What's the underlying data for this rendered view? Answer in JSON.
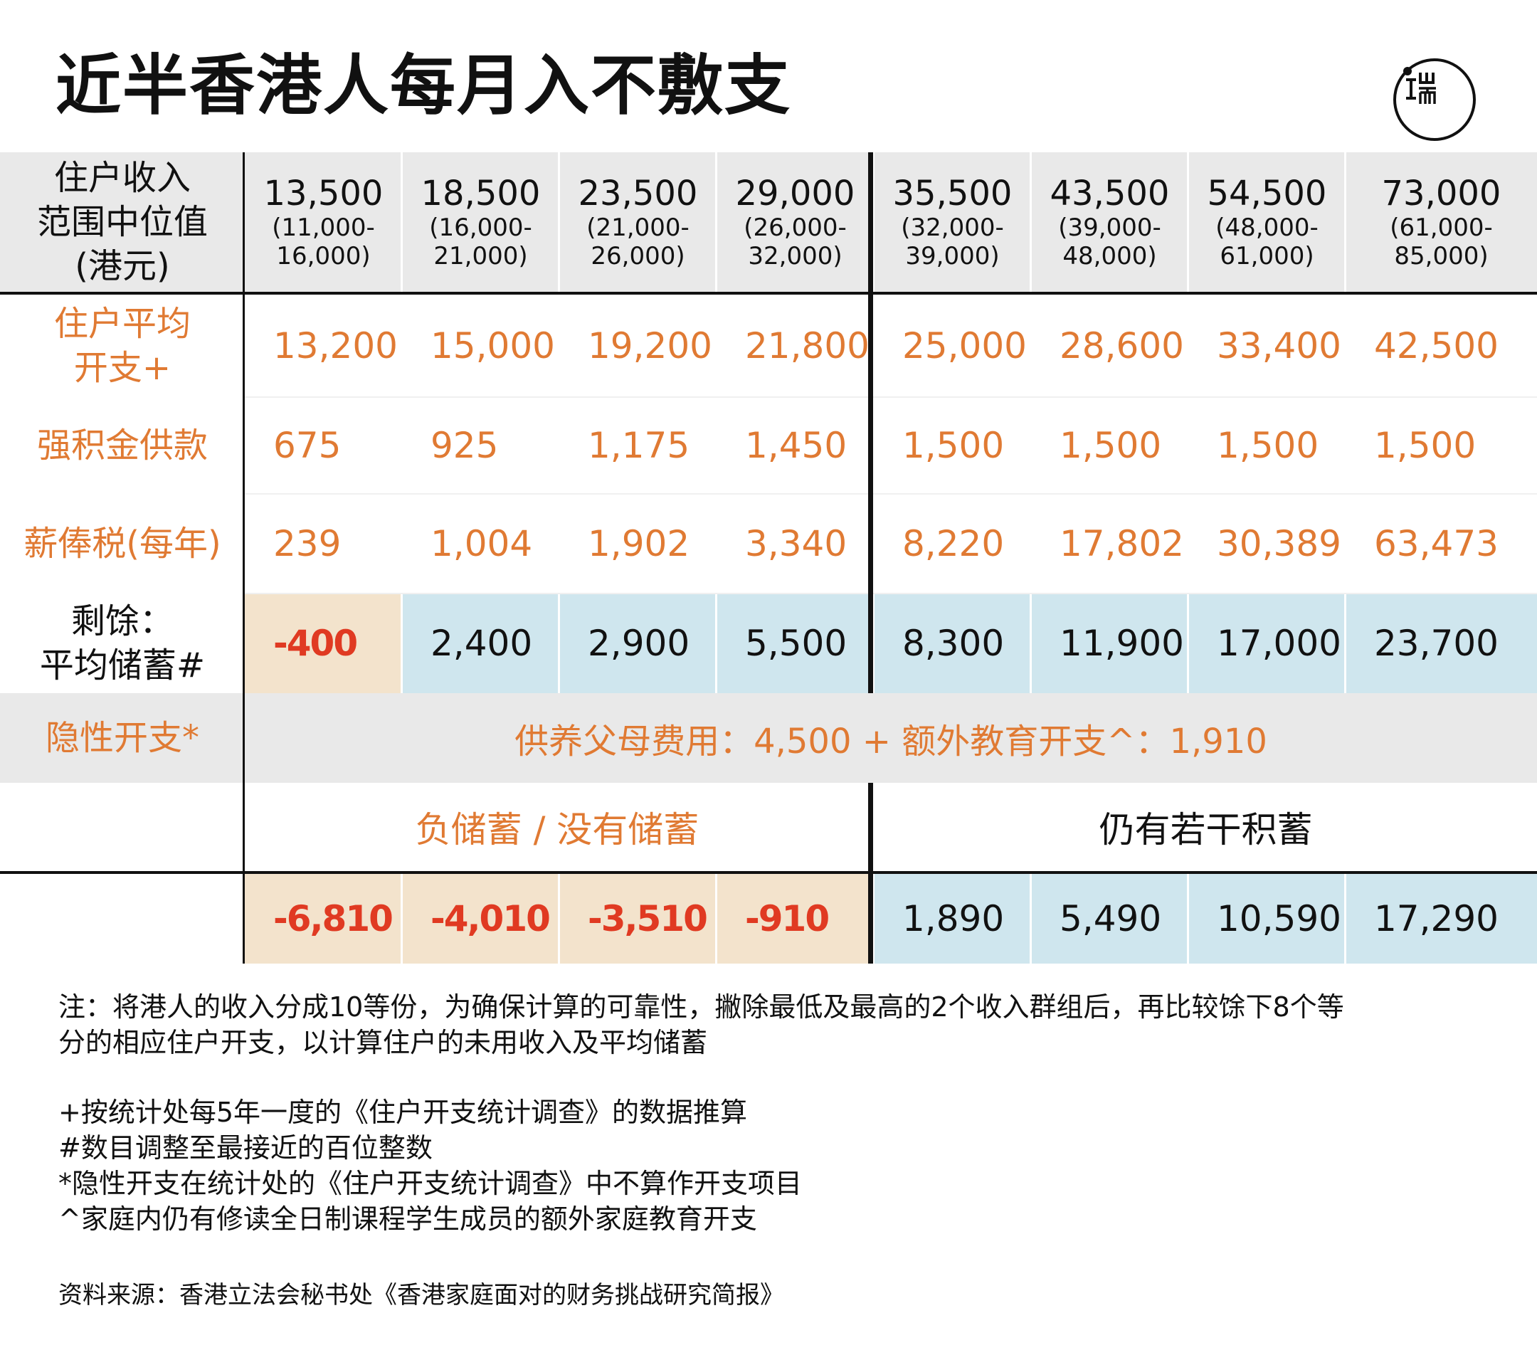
{
  "title": "近半香港人每月入不敷支",
  "logo": {
    "icon": "duan-media-logo-icon",
    "text": "端"
  },
  "colors": {
    "orange": "#e07a33",
    "red": "#e03a22",
    "header_gray": "#e9e9e9",
    "peach": "#f3e3cc",
    "light_blue": "#cfe6ee"
  },
  "chart_data": {
    "type": "table",
    "row_headers": {
      "income": [
        "住户收入",
        "范围中位值",
        "(港元)"
      ],
      "expense": [
        "住户平均",
        "开支+"
      ],
      "mpf": "强积金供款",
      "tax": "薪俸税(每年)",
      "surplus": [
        "剩馀：",
        "平均储蓄#"
      ],
      "hidden": "隐性开支*"
    },
    "columns": [
      {
        "median": "13,500",
        "range": [
          "(11,000-",
          "16,000)"
        ]
      },
      {
        "median": "18,500",
        "range": [
          "(16,000-",
          "21,000)"
        ]
      },
      {
        "median": "23,500",
        "range": [
          "(21,000-",
          "26,000)"
        ]
      },
      {
        "median": "29,000",
        "range": [
          "(26,000-",
          "32,000)"
        ]
      },
      {
        "median": "35,500",
        "range": [
          "(32,000-",
          "39,000)"
        ]
      },
      {
        "median": "43,500",
        "range": [
          "(39,000-",
          "48,000)"
        ]
      },
      {
        "median": "54,500",
        "range": [
          "(48,000-",
          "61,000)"
        ]
      },
      {
        "median": "73,000",
        "range": [
          "(61,000-",
          "85,000)"
        ]
      }
    ],
    "expense": [
      "13,200",
      "15,000",
      "19,200",
      "21,800",
      "25,000",
      "28,600",
      "33,400",
      "42,500"
    ],
    "mpf": [
      "675",
      "925",
      "1,175",
      "1,450",
      "1,500",
      "1,500",
      "1,500",
      "1,500"
    ],
    "tax": [
      "239",
      "1,004",
      "1,902",
      "3,340",
      "8,220",
      "17,802",
      "30,389",
      "63,473"
    ],
    "surplus": [
      "-400",
      "2,400",
      "2,900",
      "5,500",
      "8,300",
      "11,900",
      "17,000",
      "23,700"
    ],
    "hidden_text": "供养父母费用：4,500 + 额外教育开支^：1,910",
    "group_labels": {
      "left": "负储蓄 / 没有储蓄",
      "right": "仍有若干积蓄"
    },
    "after_hidden": [
      "-6,810",
      "-4,010",
      "-3,510",
      "-910",
      "1,890",
      "5,490",
      "10,590",
      "17,290"
    ]
  },
  "notes": {
    "main": [
      "注：将港人的收入分成10等份，为确保计算的可靠性，撇除最低及最高的2个收入群组后，再比较馀下8个等",
      "分的相应住户开支，以计算住户的未用收入及平均储蓄"
    ],
    "plus": "+按统计处每5年一度的《住户开支统计调查》的数据推算",
    "hash": "#数目调整至最接近的百位整数",
    "star": "*隐性开支在统计处的《住户开支统计调查》中不算作开支项目",
    "caret": "^家庭内仍有修读全日制课程学生成员的额外家庭教育开支"
  },
  "source": "资料来源：香港立法会秘书处《香港家庭面对的财务挑战研究简报》"
}
